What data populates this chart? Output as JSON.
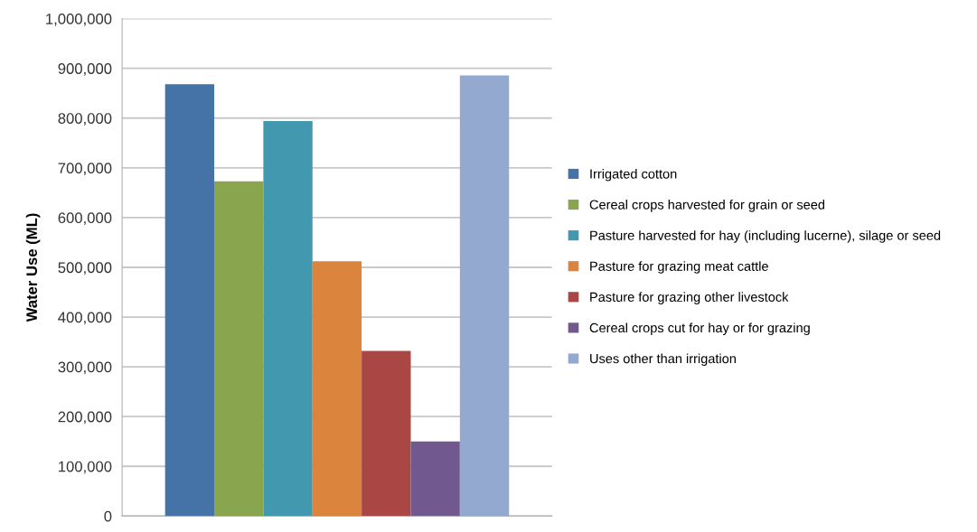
{
  "chart_data": {
    "type": "bar",
    "ylabel": "Water Use (ML)",
    "categories": [
      null
    ],
    "series": [
      {
        "name": "Irrigated cotton",
        "color": "#4572a7",
        "values": [
          868000
        ]
      },
      {
        "name": "Cereal crops harvested for grain or seed",
        "color": "#89a54e",
        "values": [
          673000
        ]
      },
      {
        "name": "Pasture harvested for hay (including lucerne), silage or seed",
        "color": "#4198af",
        "values": [
          794000
        ]
      },
      {
        "name": "Pasture for grazing meat cattle",
        "color": "#db843d",
        "values": [
          512000
        ]
      },
      {
        "name": "Pasture for grazing other livestock",
        "color": "#aa4643",
        "values": [
          332000
        ]
      },
      {
        "name": "Cereal crops cut for hay or for grazing",
        "color": "#71588f",
        "values": [
          150000
        ]
      },
      {
        "name": "Uses other than irrigation",
        "color": "#93a9cf",
        "values": [
          886000
        ]
      }
    ],
    "ylim": [
      0,
      1000000
    ],
    "yticks": [
      {
        "value": 0,
        "label": "0"
      },
      {
        "value": 100000,
        "label": "100,000"
      },
      {
        "value": 200000,
        "label": "200,000"
      },
      {
        "value": 300000,
        "label": "300,000"
      },
      {
        "value": 400000,
        "label": "400,000"
      },
      {
        "value": 500000,
        "label": "500,000"
      },
      {
        "value": 600000,
        "label": "600,000"
      },
      {
        "value": 700000,
        "label": "700,000"
      },
      {
        "value": 800000,
        "label": "800,000"
      },
      {
        "value": 900000,
        "label": "900,000"
      },
      {
        "value": 1000000,
        "label": "1,000,000"
      }
    ],
    "grid": "y",
    "legend": "right"
  }
}
